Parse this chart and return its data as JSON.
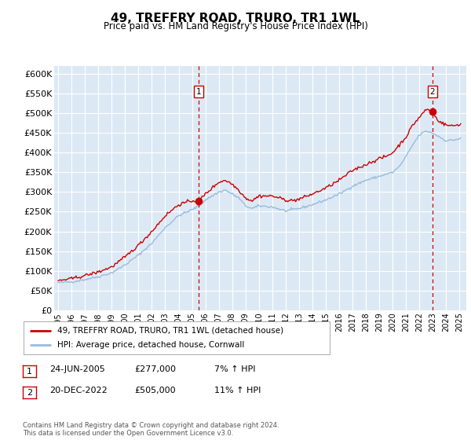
{
  "title": "49, TREFFRY ROAD, TRURO, TR1 1WL",
  "subtitle": "Price paid vs. HM Land Registry's House Price Index (HPI)",
  "ylim": [
    0,
    620000
  ],
  "yticks": [
    0,
    50000,
    100000,
    150000,
    200000,
    250000,
    300000,
    350000,
    400000,
    450000,
    500000,
    550000,
    600000
  ],
  "ytick_labels": [
    "£0",
    "£50K",
    "£100K",
    "£150K",
    "£200K",
    "£250K",
    "£300K",
    "£350K",
    "£400K",
    "£450K",
    "£500K",
    "£550K",
    "£600K"
  ],
  "xlim_start": 1994.7,
  "xlim_end": 2025.5,
  "xtick_years": [
    1995,
    1996,
    1997,
    1998,
    1999,
    2000,
    2001,
    2002,
    2003,
    2004,
    2005,
    2006,
    2007,
    2008,
    2009,
    2010,
    2011,
    2012,
    2013,
    2014,
    2015,
    2016,
    2017,
    2018,
    2019,
    2020,
    2021,
    2022,
    2023,
    2024,
    2025
  ],
  "plot_bg_color": "#dce9f5",
  "fig_bg_color": "#ffffff",
  "grid_color": "#ffffff",
  "red_line_color": "#cc0000",
  "blue_line_color": "#99bbdd",
  "marker_color": "#cc0000",
  "vline_color": "#cc0000",
  "ann1_x": 2005.48,
  "ann1_y": 277000,
  "ann2_x": 2022.97,
  "ann2_y": 505000,
  "legend_line1": "49, TREFFRY ROAD, TRURO, TR1 1WL (detached house)",
  "legend_line2": "HPI: Average price, detached house, Cornwall",
  "footer1": "Contains HM Land Registry data © Crown copyright and database right 2024.",
  "footer2": "This data is licensed under the Open Government Licence v3.0.",
  "table_rows": [
    {
      "num": "1",
      "date": "24-JUN-2005",
      "price": "£277,000",
      "pct": "7% ↑ HPI"
    },
    {
      "num": "2",
      "date": "20-DEC-2022",
      "price": "£505,000",
      "pct": "11% ↑ HPI"
    }
  ],
  "hpi_anchors_t": [
    1995.0,
    1996.0,
    1997.0,
    1998.0,
    1999.0,
    2000.0,
    2001.0,
    2002.0,
    2003.0,
    2004.0,
    2005.0,
    2005.5,
    2006.0,
    2007.0,
    2007.5,
    2008.5,
    2009.0,
    2009.5,
    2010.0,
    2011.0,
    2012.0,
    2012.5,
    2013.0,
    2014.0,
    2015.0,
    2016.0,
    2017.0,
    2018.0,
    2019.0,
    2019.5,
    2020.0,
    2020.5,
    2021.0,
    2021.5,
    2022.0,
    2022.5,
    2022.97,
    2023.5,
    2024.0,
    2024.5,
    2025.0
  ],
  "hpi_anchors_v": [
    70000,
    72000,
    78000,
    85000,
    95000,
    115000,
    140000,
    170000,
    210000,
    240000,
    255000,
    265000,
    280000,
    300000,
    305000,
    285000,
    265000,
    258000,
    265000,
    262000,
    252000,
    255000,
    258000,
    268000,
    280000,
    295000,
    315000,
    330000,
    340000,
    345000,
    350000,
    365000,
    390000,
    420000,
    445000,
    455000,
    450000,
    440000,
    430000,
    432000,
    435000
  ],
  "red_anchors_t": [
    1995.0,
    1996.0,
    1997.0,
    1998.0,
    1999.0,
    2000.0,
    2001.0,
    2002.0,
    2003.0,
    2004.0,
    2005.0,
    2005.48,
    2006.0,
    2007.0,
    2007.5,
    2008.0,
    2008.5,
    2009.0,
    2009.5,
    2010.0,
    2011.0,
    2012.0,
    2012.5,
    2013.0,
    2014.0,
    2015.0,
    2016.0,
    2017.0,
    2018.0,
    2019.0,
    2019.5,
    2020.0,
    2020.5,
    2021.0,
    2021.5,
    2022.0,
    2022.5,
    2022.97,
    2023.3,
    2023.7,
    2024.0,
    2024.5,
    2025.0
  ],
  "red_anchors_v": [
    75000,
    80000,
    88000,
    97000,
    110000,
    135000,
    165000,
    200000,
    240000,
    268000,
    278000,
    277000,
    295000,
    325000,
    330000,
    320000,
    305000,
    285000,
    278000,
    290000,
    290000,
    280000,
    278000,
    282000,
    295000,
    310000,
    330000,
    355000,
    370000,
    385000,
    390000,
    400000,
    420000,
    440000,
    470000,
    490000,
    510000,
    505000,
    485000,
    475000,
    470000,
    468000,
    472000
  ]
}
